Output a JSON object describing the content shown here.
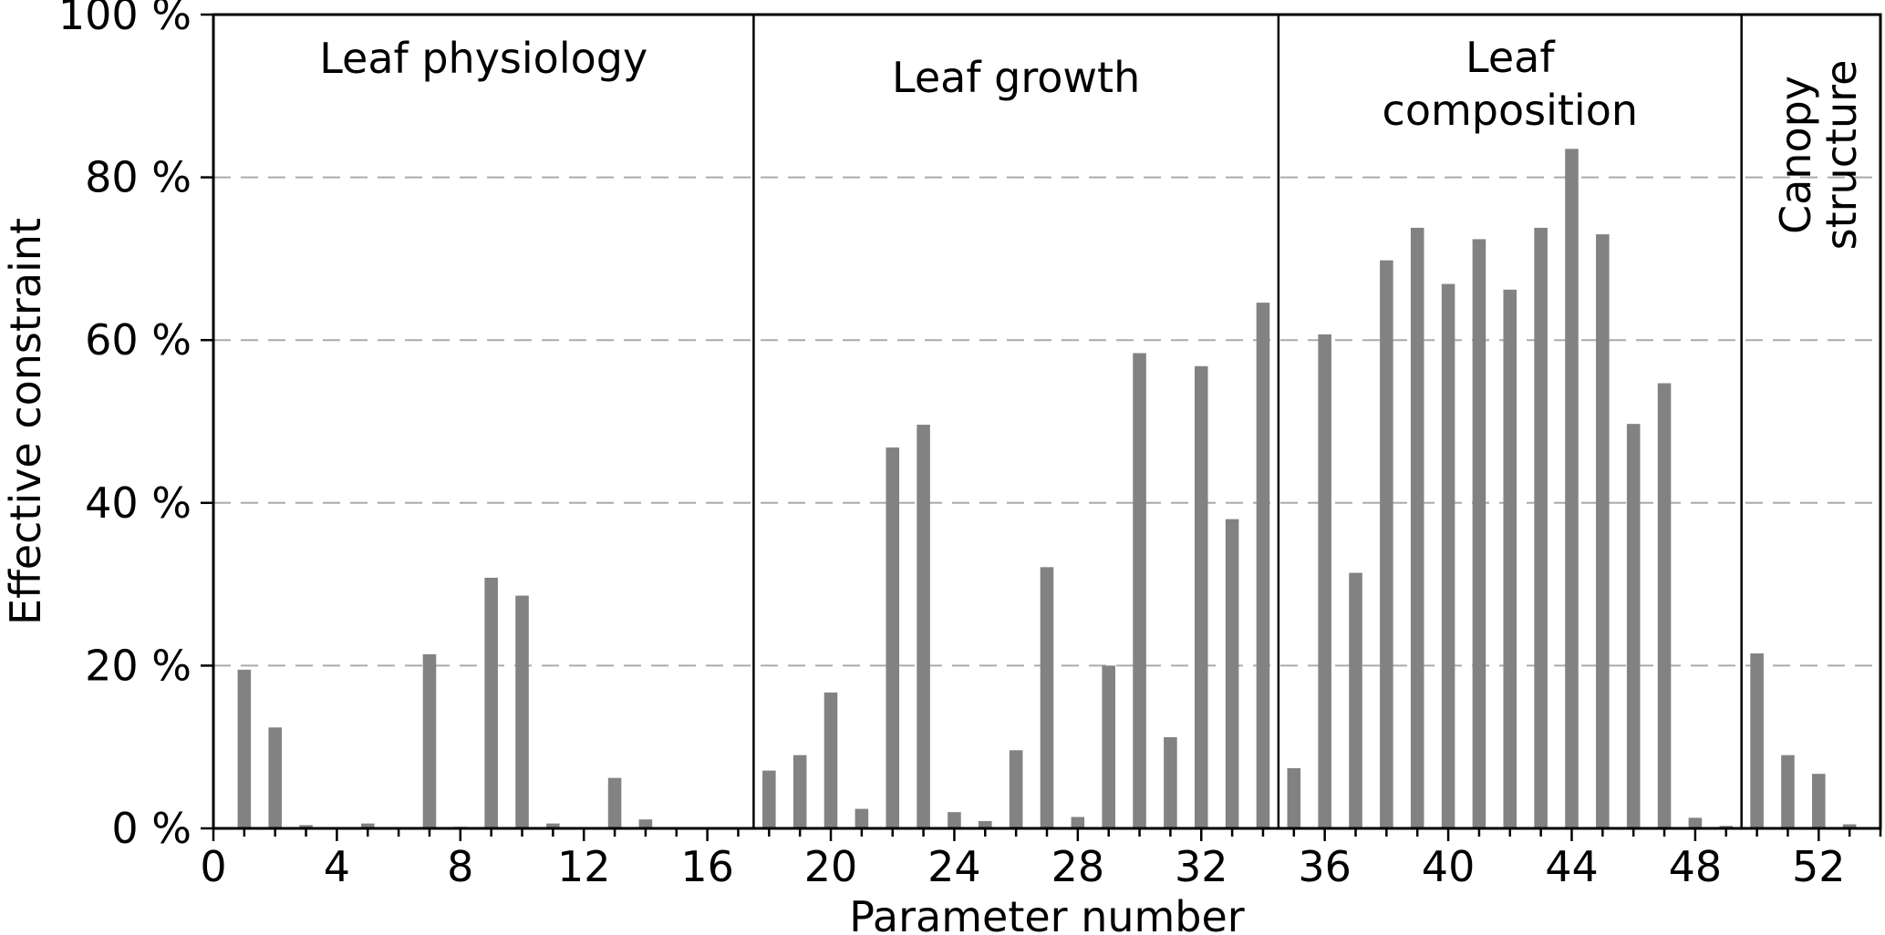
{
  "chart_data": {
    "type": "bar",
    "title": "",
    "xlabel": "Parameter number",
    "ylabel": "Effective constraint",
    "xlim": [
      0,
      54
    ],
    "ylim": [
      0,
      100
    ],
    "grid": "horizontal dashed",
    "gridlines": [
      20,
      40,
      60,
      80
    ],
    "legend": "none",
    "bar_color": "#828282",
    "grid_color": "#aaaaaa",
    "axis_color": "#000000",
    "bar_width_units": 0.43,
    "categories": [
      1,
      2,
      3,
      4,
      5,
      6,
      7,
      8,
      9,
      10,
      11,
      12,
      13,
      14,
      15,
      16,
      17,
      18,
      19,
      20,
      21,
      22,
      23,
      24,
      25,
      26,
      27,
      28,
      29,
      30,
      31,
      32,
      33,
      34,
      35,
      36,
      37,
      38,
      39,
      40,
      41,
      42,
      43,
      44,
      45,
      46,
      47,
      48,
      49,
      50,
      51,
      52,
      53
    ],
    "values": [
      19.5,
      12.4,
      0.4,
      0,
      0.6,
      0,
      21.4,
      0.2,
      30.8,
      28.6,
      0.6,
      0,
      6.2,
      1.1,
      0,
      0,
      0,
      7.1,
      9.0,
      16.7,
      2.4,
      46.8,
      49.6,
      2.0,
      0.9,
      9.6,
      32.1,
      1.4,
      20.0,
      58.4,
      11.2,
      56.8,
      38.0,
      64.6,
      7.4,
      60.7,
      31.4,
      69.8,
      73.8,
      66.9,
      72.4,
      66.2,
      73.8,
      83.5,
      73.0,
      49.7,
      54.7,
      1.3,
      0.3,
      21.5,
      9.0,
      6.7,
      0.5
    ],
    "xticks": [
      {
        "value": 0,
        "label": "0"
      },
      {
        "value": 4,
        "label": "4"
      },
      {
        "value": 8,
        "label": "8"
      },
      {
        "value": 12,
        "label": "12"
      },
      {
        "value": 16,
        "label": "16"
      },
      {
        "value": 20,
        "label": "20"
      },
      {
        "value": 24,
        "label": "24"
      },
      {
        "value": 28,
        "label": "28"
      },
      {
        "value": 32,
        "label": "32"
      },
      {
        "value": 36,
        "label": "36"
      },
      {
        "value": 40,
        "label": "40"
      },
      {
        "value": 44,
        "label": "44"
      },
      {
        "value": 48,
        "label": "48"
      },
      {
        "value": 52,
        "label": "52"
      }
    ],
    "yticks": [
      {
        "value": 0,
        "label": "0 %"
      },
      {
        "value": 20,
        "label": "20 %"
      },
      {
        "value": 40,
        "label": "40 %"
      },
      {
        "value": 60,
        "label": "60 %"
      },
      {
        "value": 80,
        "label": "80 %"
      },
      {
        "value": 100,
        "label": "100 %"
      }
    ],
    "sections": [
      {
        "label": "Leaf physiology",
        "lines": [
          "Leaf physiology"
        ],
        "from": 0,
        "to": 17.5,
        "rotated": false
      },
      {
        "label": "Leaf growth",
        "lines": [
          "Leaf growth"
        ],
        "from": 17.5,
        "to": 34.5,
        "rotated": false
      },
      {
        "label": "Leaf composition",
        "lines": [
          "Leaf",
          "composition"
        ],
        "from": 34.5,
        "to": 49.5,
        "rotated": false
      },
      {
        "label": "Canopy structure",
        "lines": [
          "Canopy",
          "structure"
        ],
        "from": 49.5,
        "to": 54,
        "rotated": true
      }
    ]
  }
}
